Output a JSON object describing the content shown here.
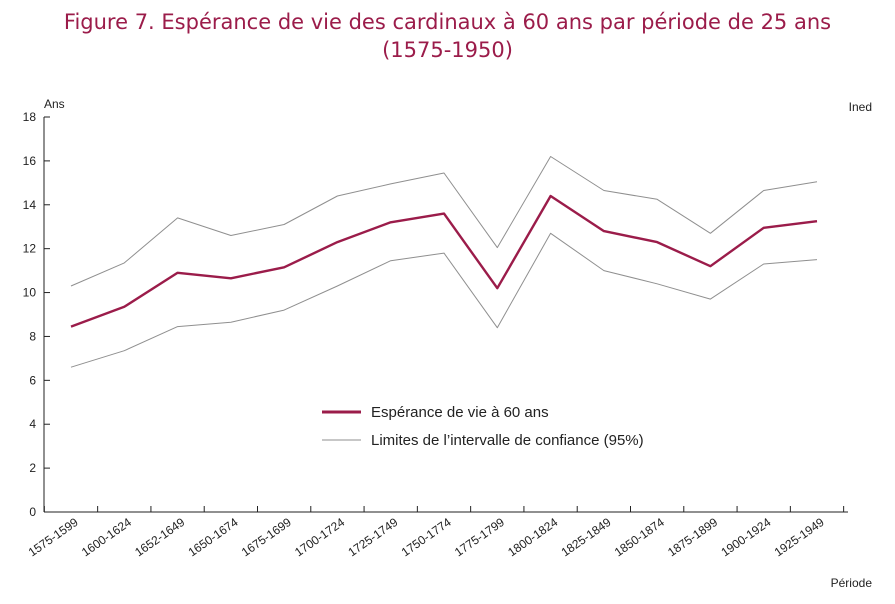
{
  "chart_data": {
    "type": "line",
    "title_line1": "Figure 7. Espérance de vie des cardinaux à 60 ans par période de 25 ans",
    "title_line2": "(1575-1950)",
    "ylabel": "Ans",
    "xlabel": "Période",
    "source": "Ined",
    "ylim": [
      0,
      18
    ],
    "yticks": [
      0,
      2,
      4,
      6,
      8,
      10,
      12,
      14,
      16,
      18
    ],
    "grid": false,
    "legend_position": "bottom-center",
    "categories": [
      "1575-1599",
      "1600-1624",
      "1652-1649",
      "1650-1674",
      "1675-1699",
      "1700-1724",
      "1725-1749",
      "1750-1774",
      "1775-1799",
      "1800-1824",
      "1825-1849",
      "1850-1874",
      "1875-1899",
      "1900-1924",
      "1925-1949"
    ],
    "series": [
      {
        "name": "Espérance de vie à 60 ans",
        "color": "#9b1c4a",
        "values": [
          8.45,
          9.35,
          10.9,
          10.65,
          11.15,
          12.3,
          13.2,
          13.6,
          10.2,
          14.4,
          12.8,
          12.3,
          11.2,
          12.95,
          13.25
        ]
      },
      {
        "name": "Limites de l’intervalle de confiance (95%)",
        "color": "#8f8f8f",
        "values": [
          10.3,
          11.35,
          13.4,
          12.6,
          13.1,
          14.4,
          14.95,
          15.45,
          12.05,
          16.2,
          14.65,
          14.25,
          12.7,
          14.65,
          15.05
        ]
      },
      {
        "color": "#8f8f8f",
        "values": [
          6.6,
          7.35,
          8.45,
          8.65,
          9.2,
          10.3,
          11.45,
          11.8,
          8.4,
          12.7,
          11.0,
          10.4,
          9.7,
          11.3,
          11.5
        ]
      }
    ]
  }
}
